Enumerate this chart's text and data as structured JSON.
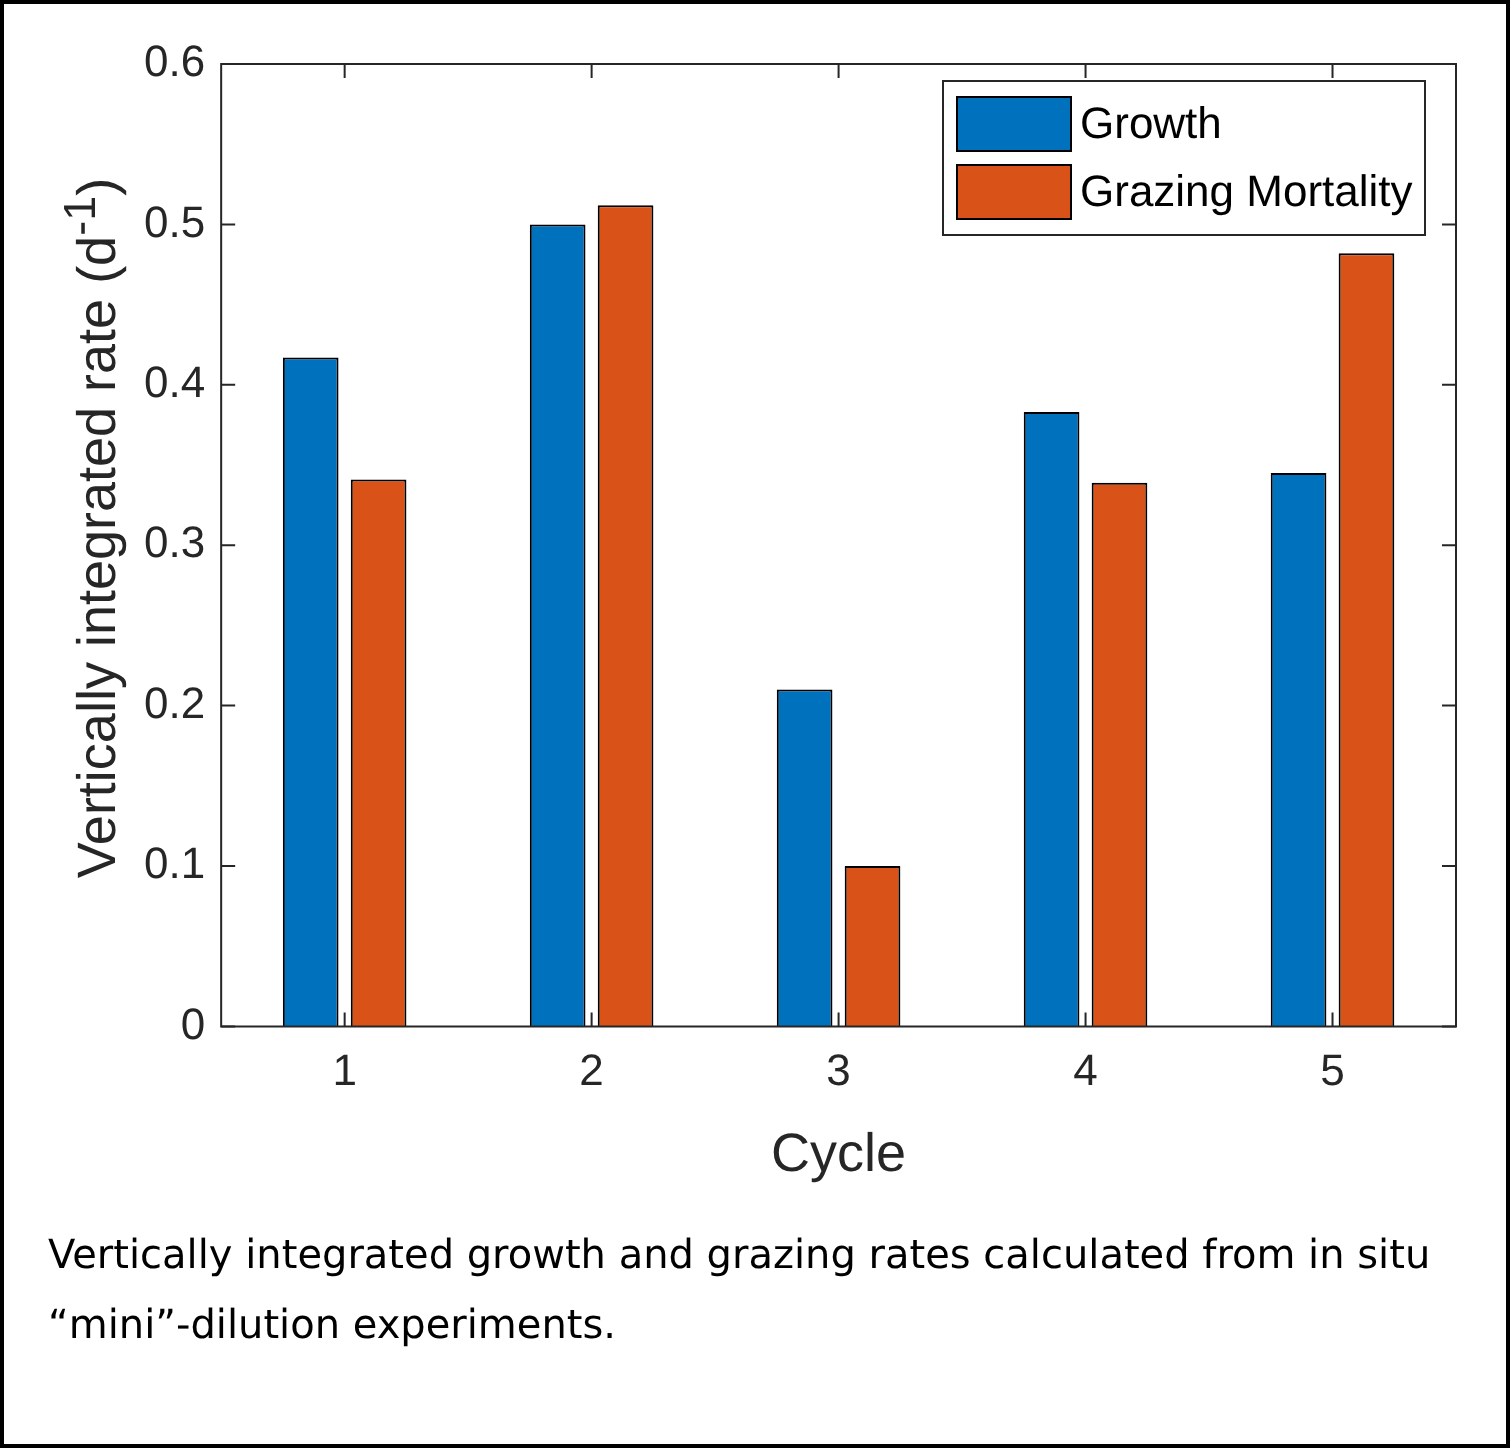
{
  "chart_data": {
    "type": "bar",
    "categories": [
      "1",
      "2",
      "3",
      "4",
      "5"
    ],
    "series": [
      {
        "name": "Growth",
        "color": "#0072bd",
        "values": [
          0.417,
          0.5,
          0.21,
          0.383,
          0.345
        ]
      },
      {
        "name": "Grazing Mortality",
        "color": "#d95319",
        "values": [
          0.341,
          0.512,
          0.1,
          0.339,
          0.482
        ]
      }
    ],
    "ylim": [
      0,
      0.6
    ],
    "yticks": [
      0,
      0.1,
      0.2,
      0.3,
      0.4,
      0.5,
      0.6
    ],
    "xlabel": "Cycle",
    "ylabel": "Vertically integrated rate (d$^{-1}$)",
    "legend": "top right",
    "annotations": [
      "Vertically integrated growth and grazing rates calculated from in situ “mini”-dilution experiments."
    ]
  }
}
